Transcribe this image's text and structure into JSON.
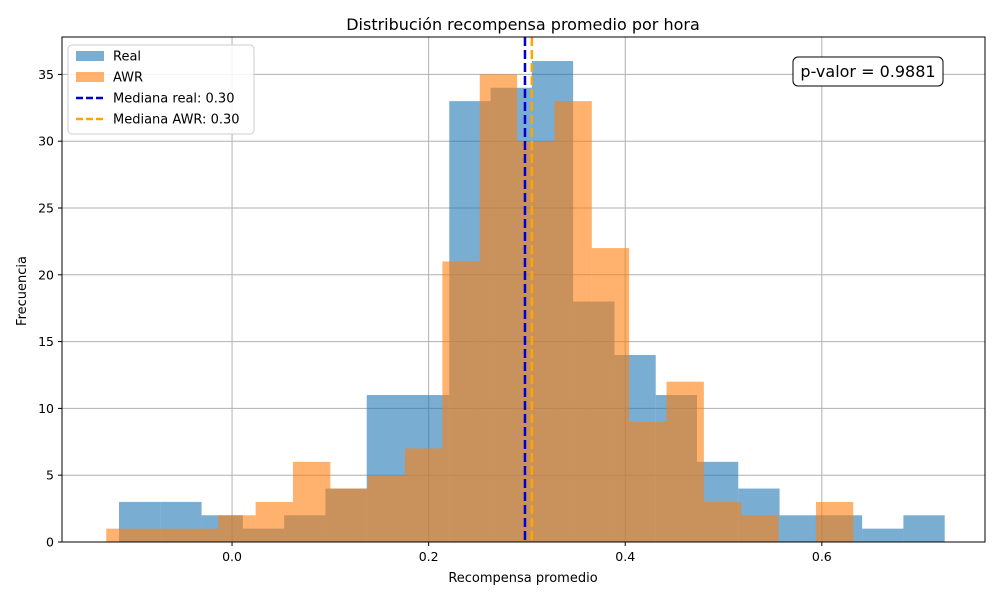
{
  "chart_data": {
    "type": "bar",
    "subtype": "overlaid-histogram",
    "title": "Distribución recompensa promedio por hora",
    "xlabel": "Recompensa promedio",
    "ylabel": "Frecuencia",
    "xlim": [
      -0.173,
      0.766
    ],
    "ylim": [
      0,
      37.8
    ],
    "xticks": [
      0.0,
      0.2,
      0.4,
      0.6
    ],
    "xtick_labels": [
      "0.0",
      "0.2",
      "0.4",
      "0.6"
    ],
    "yticks": [
      0,
      5,
      10,
      15,
      20,
      25,
      30,
      35
    ],
    "ytick_labels": [
      "0",
      "5",
      "10",
      "15",
      "20",
      "25",
      "30",
      "35"
    ],
    "grid": true,
    "legend_position": "top-left",
    "series": [
      {
        "name": "Real",
        "color": "#1f77b4",
        "opacity": 0.6,
        "bin_edges": [
          -0.115,
          -0.073,
          -0.031,
          0.011,
          0.053,
          0.095,
          0.137,
          0.179,
          0.221,
          0.263,
          0.305,
          0.347,
          0.389,
          0.431,
          0.473,
          0.515,
          0.557,
          0.599,
          0.641,
          0.683,
          0.725
        ],
        "counts": [
          3,
          3,
          2,
          1,
          2,
          4,
          11,
          11,
          33,
          34,
          36,
          18,
          14,
          11,
          6,
          4,
          2,
          2,
          1,
          2
        ]
      },
      {
        "name": "AWR",
        "color": "#ff7f0e",
        "opacity": 0.6,
        "bin_edges": [
          -0.128,
          -0.09,
          -0.052,
          -0.014,
          0.024,
          0.062,
          0.1,
          0.138,
          0.176,
          0.214,
          0.252,
          0.29,
          0.328,
          0.366,
          0.404,
          0.442,
          0.48,
          0.518,
          0.556,
          0.594,
          0.632
        ],
        "counts": [
          1,
          1,
          1,
          2,
          3,
          6,
          4,
          5,
          7,
          21,
          35,
          30,
          33,
          22,
          9,
          12,
          3,
          2,
          0,
          3
        ]
      }
    ],
    "reference_lines": [
      {
        "name": "Mediana real: 0.30",
        "x": 0.298,
        "color": "#0000cc",
        "style": "dashed"
      },
      {
        "name": "Mediana AWR: 0.30",
        "x": 0.305,
        "color": "#ffa500",
        "style": "dashed"
      }
    ],
    "annotation": {
      "text": "p-valor = 0.9881",
      "x": 0.66,
      "y": 35.5,
      "position": "top-right"
    }
  }
}
